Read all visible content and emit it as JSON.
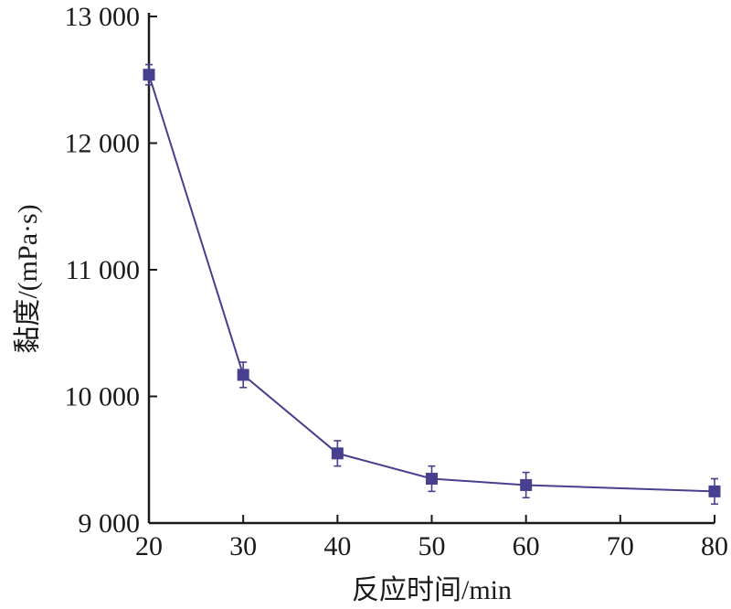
{
  "chart_data": {
    "type": "line",
    "xlabel": "反应时间/min",
    "ylabel": "黏度/(mPa·s)",
    "xlim": [
      20,
      80
    ],
    "ylim": [
      9000,
      13000
    ],
    "x_ticks": [
      20,
      30,
      40,
      50,
      60,
      70,
      80
    ],
    "x_tick_labels": [
      "20",
      "30",
      "40",
      "50",
      "60",
      "70",
      "80"
    ],
    "y_ticks": [
      9000,
      10000,
      11000,
      12000,
      13000
    ],
    "y_tick_labels": [
      "9 000",
      "10 000",
      "11 000",
      "12 000",
      "13 000"
    ],
    "grid": false,
    "series": [
      {
        "color": "#46408f",
        "marker": "square",
        "x": [
          20,
          30,
          40,
          50,
          60,
          70,
          80
        ],
        "y": [
          12540,
          10170,
          9550,
          9350,
          9300,
          null,
          9250
        ],
        "error": [
          80,
          100,
          100,
          100,
          100,
          null,
          100
        ]
      }
    ]
  }
}
